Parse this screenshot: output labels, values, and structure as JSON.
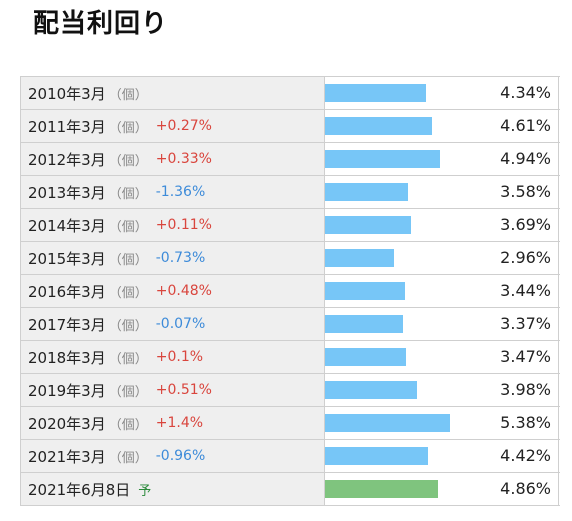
{
  "header": {
    "title": "配当利回り"
  },
  "chart_data": {
    "type": "bar",
    "unit": "%",
    "rows": [
      {
        "label": "2010年3月",
        "kind": "（個）",
        "change": "",
        "value": 4.34,
        "value_label": "4.34%",
        "forecast": false
      },
      {
        "label": "2011年3月",
        "kind": "（個）",
        "change": "+0.27%",
        "value": 4.61,
        "value_label": "4.61%",
        "forecast": false
      },
      {
        "label": "2012年3月",
        "kind": "（個）",
        "change": "+0.33%",
        "value": 4.94,
        "value_label": "4.94%",
        "forecast": false
      },
      {
        "label": "2013年3月",
        "kind": "（個）",
        "change": "-1.36%",
        "value": 3.58,
        "value_label": "3.58%",
        "forecast": false
      },
      {
        "label": "2014年3月",
        "kind": "（個）",
        "change": "+0.11%",
        "value": 3.69,
        "value_label": "3.69%",
        "forecast": false
      },
      {
        "label": "2015年3月",
        "kind": "（個）",
        "change": "-0.73%",
        "value": 2.96,
        "value_label": "2.96%",
        "forecast": false
      },
      {
        "label": "2016年3月",
        "kind": "（個）",
        "change": "+0.48%",
        "value": 3.44,
        "value_label": "3.44%",
        "forecast": false
      },
      {
        "label": "2017年3月",
        "kind": "（個）",
        "change": "-0.07%",
        "value": 3.37,
        "value_label": "3.37%",
        "forecast": false
      },
      {
        "label": "2018年3月",
        "kind": "（個）",
        "change": "+0.1%",
        "value": 3.47,
        "value_label": "3.47%",
        "forecast": false
      },
      {
        "label": "2019年3月",
        "kind": "（個）",
        "change": "+0.51%",
        "value": 3.98,
        "value_label": "3.98%",
        "forecast": false
      },
      {
        "label": "2020年3月",
        "kind": "（個）",
        "change": "+1.4%",
        "value": 5.38,
        "value_label": "5.38%",
        "forecast": false
      },
      {
        "label": "2021年3月",
        "kind": "（個）",
        "change": "-0.96%",
        "value": 4.42,
        "value_label": "4.42%",
        "forecast": false
      },
      {
        "label": "2021年6月8日",
        "kind": "",
        "change": "",
        "forecast_mark": "予",
        "value": 4.86,
        "value_label": "4.86%",
        "forecast": true
      }
    ],
    "colors": {
      "actual_bar": "#77c6f7",
      "forecast_bar": "#7fc47e",
      "change_up": "#d9453d",
      "change_down": "#3d8bd9"
    }
  }
}
